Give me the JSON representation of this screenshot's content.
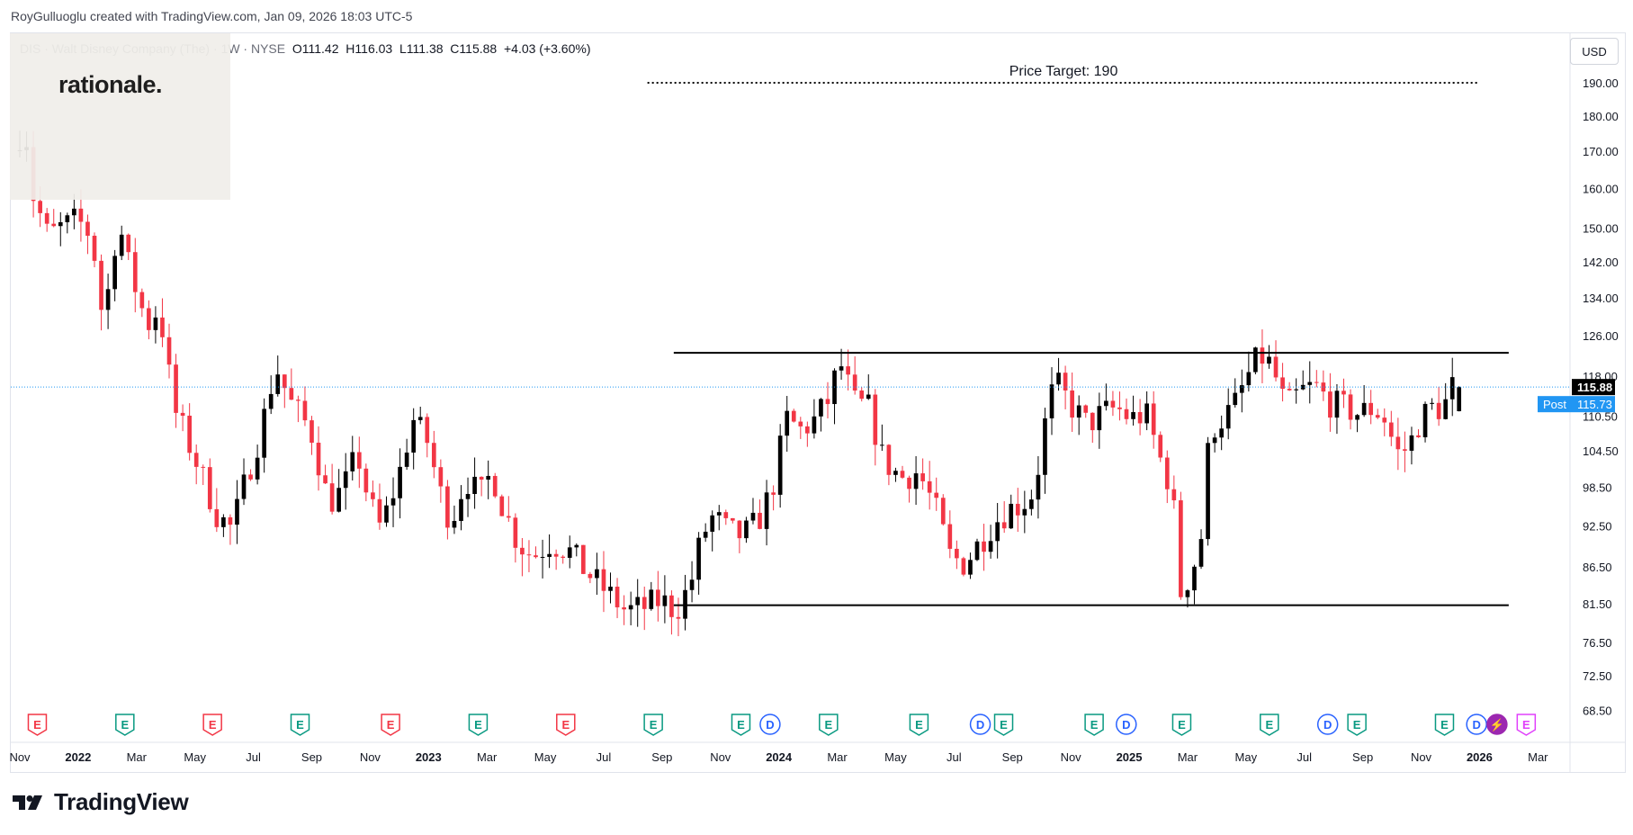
{
  "credit": "RoyGulluoglu created with TradingView.com, Jan 09, 2026 18:03 UTC-5",
  "legend": {
    "symbol": "DIS · Walt Disney Company (The) · 1W · NYSE",
    "open": "O111.42",
    "high": "H116.03",
    "low": "L111.38",
    "close": "C115.88",
    "change": "+4.03 (+3.60%)"
  },
  "overlay_brand": "rationale.",
  "currency": "USD",
  "colors": {
    "up": "#000000",
    "down": "#f23645",
    "post": "#2196f3",
    "price_line": "#2196f3",
    "grid": "#e0e3eb"
  },
  "logo_text": "TradingView",
  "chart_data": {
    "type": "candlestick",
    "scale": "log",
    "ylim": [
      66.5,
      205
    ],
    "y_ticks": [
      68.5,
      72.5,
      76.5,
      81.5,
      86.5,
      92.5,
      98.5,
      104.5,
      110.5,
      118.0,
      126.0,
      134.0,
      142.0,
      150.0,
      160.0,
      170.0,
      180.0,
      190.0
    ],
    "x_labels": [
      {
        "label": "Nov",
        "t": 0.0
      },
      {
        "label": "2022",
        "t": 2.0
      },
      {
        "label": "Mar",
        "t": 4.0
      },
      {
        "label": "May",
        "t": 6.0
      },
      {
        "label": "Jul",
        "t": 8.0
      },
      {
        "label": "Sep",
        "t": 10.0
      },
      {
        "label": "Nov",
        "t": 12.0
      },
      {
        "label": "2023",
        "t": 14.0
      },
      {
        "label": "Mar",
        "t": 16.0
      },
      {
        "label": "May",
        "t": 18.0
      },
      {
        "label": "Jul",
        "t": 20.0
      },
      {
        "label": "Sep",
        "t": 22.0
      },
      {
        "label": "Nov",
        "t": 24.0
      },
      {
        "label": "2024",
        "t": 26.0
      },
      {
        "label": "Mar",
        "t": 28.0
      },
      {
        "label": "May",
        "t": 30.0
      },
      {
        "label": "Jul",
        "t": 32.0
      },
      {
        "label": "Sep",
        "t": 34.0
      },
      {
        "label": "Nov",
        "t": 36.0
      },
      {
        "label": "2025",
        "t": 38.0
      },
      {
        "label": "Mar",
        "t": 40.0
      },
      {
        "label": "May",
        "t": 42.0
      },
      {
        "label": "Jul",
        "t": 44.0
      },
      {
        "label": "Sep",
        "t": 46.0
      },
      {
        "label": "Nov",
        "t": 48.0
      },
      {
        "label": "2026",
        "t": 50.0
      },
      {
        "label": "Mar",
        "t": 52.0
      }
    ],
    "anchors": [
      [
        0.0,
        170
      ],
      [
        0.4,
        178
      ],
      [
        0.7,
        158
      ],
      [
        1.2,
        148
      ],
      [
        1.6,
        150
      ],
      [
        2.2,
        152
      ],
      [
        2.7,
        148
      ],
      [
        3.1,
        128
      ],
      [
        3.6,
        152
      ],
      [
        4.0,
        140
      ],
      [
        4.6,
        128
      ],
      [
        5.0,
        132
      ],
      [
        5.5,
        112
      ],
      [
        6.0,
        106
      ],
      [
        6.5,
        100
      ],
      [
        7.0,
        94
      ],
      [
        7.5,
        92
      ],
      [
        8.0,
        100
      ],
      [
        8.5,
        108
      ],
      [
        9.0,
        120
      ],
      [
        9.5,
        113
      ],
      [
        10.2,
        108
      ],
      [
        10.8,
        96
      ],
      [
        11.3,
        98
      ],
      [
        11.8,
        104
      ],
      [
        12.2,
        96
      ],
      [
        12.6,
        92
      ],
      [
        13.2,
        100
      ],
      [
        13.7,
        110
      ],
      [
        14.2,
        106
      ],
      [
        14.6,
        98
      ],
      [
        15.0,
        93
      ],
      [
        15.5,
        100
      ],
      [
        16.0,
        97
      ],
      [
        16.4,
        101
      ],
      [
        16.8,
        95
      ],
      [
        17.3,
        90
      ],
      [
        17.8,
        88
      ],
      [
        18.4,
        90
      ],
      [
        19.0,
        89
      ],
      [
        19.6,
        86
      ],
      [
        20.1,
        84
      ],
      [
        20.6,
        82
      ],
      [
        21.0,
        80.5
      ],
      [
        21.6,
        81
      ],
      [
        22.2,
        82
      ],
      [
        22.7,
        80.5
      ],
      [
        23.2,
        84
      ],
      [
        23.6,
        91
      ],
      [
        24.0,
        94
      ],
      [
        24.5,
        91.5
      ],
      [
        25.0,
        91
      ],
      [
        25.5,
        93
      ],
      [
        26.0,
        98
      ],
      [
        26.5,
        110
      ],
      [
        27.0,
        108
      ],
      [
        27.5,
        110
      ],
      [
        28.0,
        114
      ],
      [
        28.3,
        121
      ],
      [
        28.8,
        113
      ],
      [
        29.3,
        112
      ],
      [
        29.8,
        103
      ],
      [
        30.4,
        100
      ],
      [
        31.0,
        101
      ],
      [
        31.6,
        95
      ],
      [
        32.1,
        88
      ],
      [
        32.6,
        87
      ],
      [
        33.1,
        90
      ],
      [
        33.6,
        93
      ],
      [
        34.1,
        95
      ],
      [
        34.6,
        96
      ],
      [
        35.0,
        98
      ],
      [
        35.5,
        114
      ],
      [
        35.8,
        116
      ],
      [
        36.3,
        112
      ],
      [
        36.8,
        109
      ],
      [
        37.3,
        111
      ],
      [
        37.8,
        112
      ],
      [
        38.3,
        110
      ],
      [
        38.8,
        111
      ],
      [
        39.3,
        103
      ],
      [
        39.7,
        98
      ],
      [
        40.0,
        83
      ],
      [
        40.4,
        86
      ],
      [
        40.7,
        91
      ],
      [
        41.0,
        108
      ],
      [
        41.4,
        110
      ],
      [
        41.8,
        112
      ],
      [
        42.3,
        118
      ],
      [
        42.7,
        122
      ],
      [
        43.1,
        120
      ],
      [
        43.6,
        112
      ],
      [
        44.1,
        115
      ],
      [
        44.6,
        116
      ],
      [
        45.1,
        113
      ],
      [
        45.6,
        112
      ],
      [
        46.1,
        111
      ],
      [
        46.6,
        112
      ],
      [
        47.0,
        110
      ],
      [
        47.4,
        104
      ],
      [
        47.8,
        105
      ],
      [
        48.2,
        110
      ],
      [
        48.6,
        112
      ],
      [
        49.0,
        112
      ],
      [
        49.3,
        115.88
      ]
    ],
    "last_candle": {
      "o": 111.42,
      "h": 116.03,
      "l": 111.38,
      "c": 115.88
    },
    "last_price": {
      "label": "115.88",
      "value": 115.88
    },
    "post_price": {
      "label": "Post",
      "value": "115.73",
      "level": 115.73
    },
    "price_target": {
      "label": "Price Target: 190",
      "value": 190,
      "t_start": 21.5,
      "t_end": 50.0
    },
    "resistance": {
      "value": 122.5,
      "t_start": 22.4,
      "t_end": 51.0
    },
    "support": {
      "value": 81.3,
      "t_start": 22.4,
      "t_end": 51.0
    },
    "event_markers": [
      {
        "label": "E",
        "t": 0.6,
        "kind": "earn-neg"
      },
      {
        "label": "E",
        "t": 3.6,
        "kind": "earn-pos"
      },
      {
        "label": "E",
        "t": 6.6,
        "kind": "earn-neg"
      },
      {
        "label": "E",
        "t": 9.6,
        "kind": "earn-pos"
      },
      {
        "label": "E",
        "t": 12.7,
        "kind": "earn-neg"
      },
      {
        "label": "E",
        "t": 15.7,
        "kind": "earn-pos"
      },
      {
        "label": "E",
        "t": 18.7,
        "kind": "earn-neg"
      },
      {
        "label": "E",
        "t": 21.7,
        "kind": "earn-pos"
      },
      {
        "label": "E",
        "t": 24.7,
        "kind": "earn-pos"
      },
      {
        "label": "D",
        "t": 25.7,
        "kind": "dividend"
      },
      {
        "label": "E",
        "t": 27.7,
        "kind": "earn-pos"
      },
      {
        "label": "E",
        "t": 30.8,
        "kind": "earn-pos"
      },
      {
        "label": "D",
        "t": 32.9,
        "kind": "dividend"
      },
      {
        "label": "E",
        "t": 33.7,
        "kind": "earn-pos"
      },
      {
        "label": "E",
        "t": 36.8,
        "kind": "earn-pos"
      },
      {
        "label": "D",
        "t": 37.9,
        "kind": "dividend"
      },
      {
        "label": "E",
        "t": 39.8,
        "kind": "earn-pos"
      },
      {
        "label": "E",
        "t": 42.8,
        "kind": "earn-pos"
      },
      {
        "label": "D",
        "t": 44.8,
        "kind": "dividend"
      },
      {
        "label": "E",
        "t": 45.8,
        "kind": "earn-pos"
      },
      {
        "label": "E",
        "t": 48.8,
        "kind": "earn-pos"
      },
      {
        "label": "D",
        "t": 49.9,
        "kind": "dividend"
      },
      {
        "label": "⚡",
        "t": 50.6,
        "kind": "split"
      },
      {
        "label": "E",
        "t": 51.6,
        "kind": "earn-future"
      }
    ]
  }
}
